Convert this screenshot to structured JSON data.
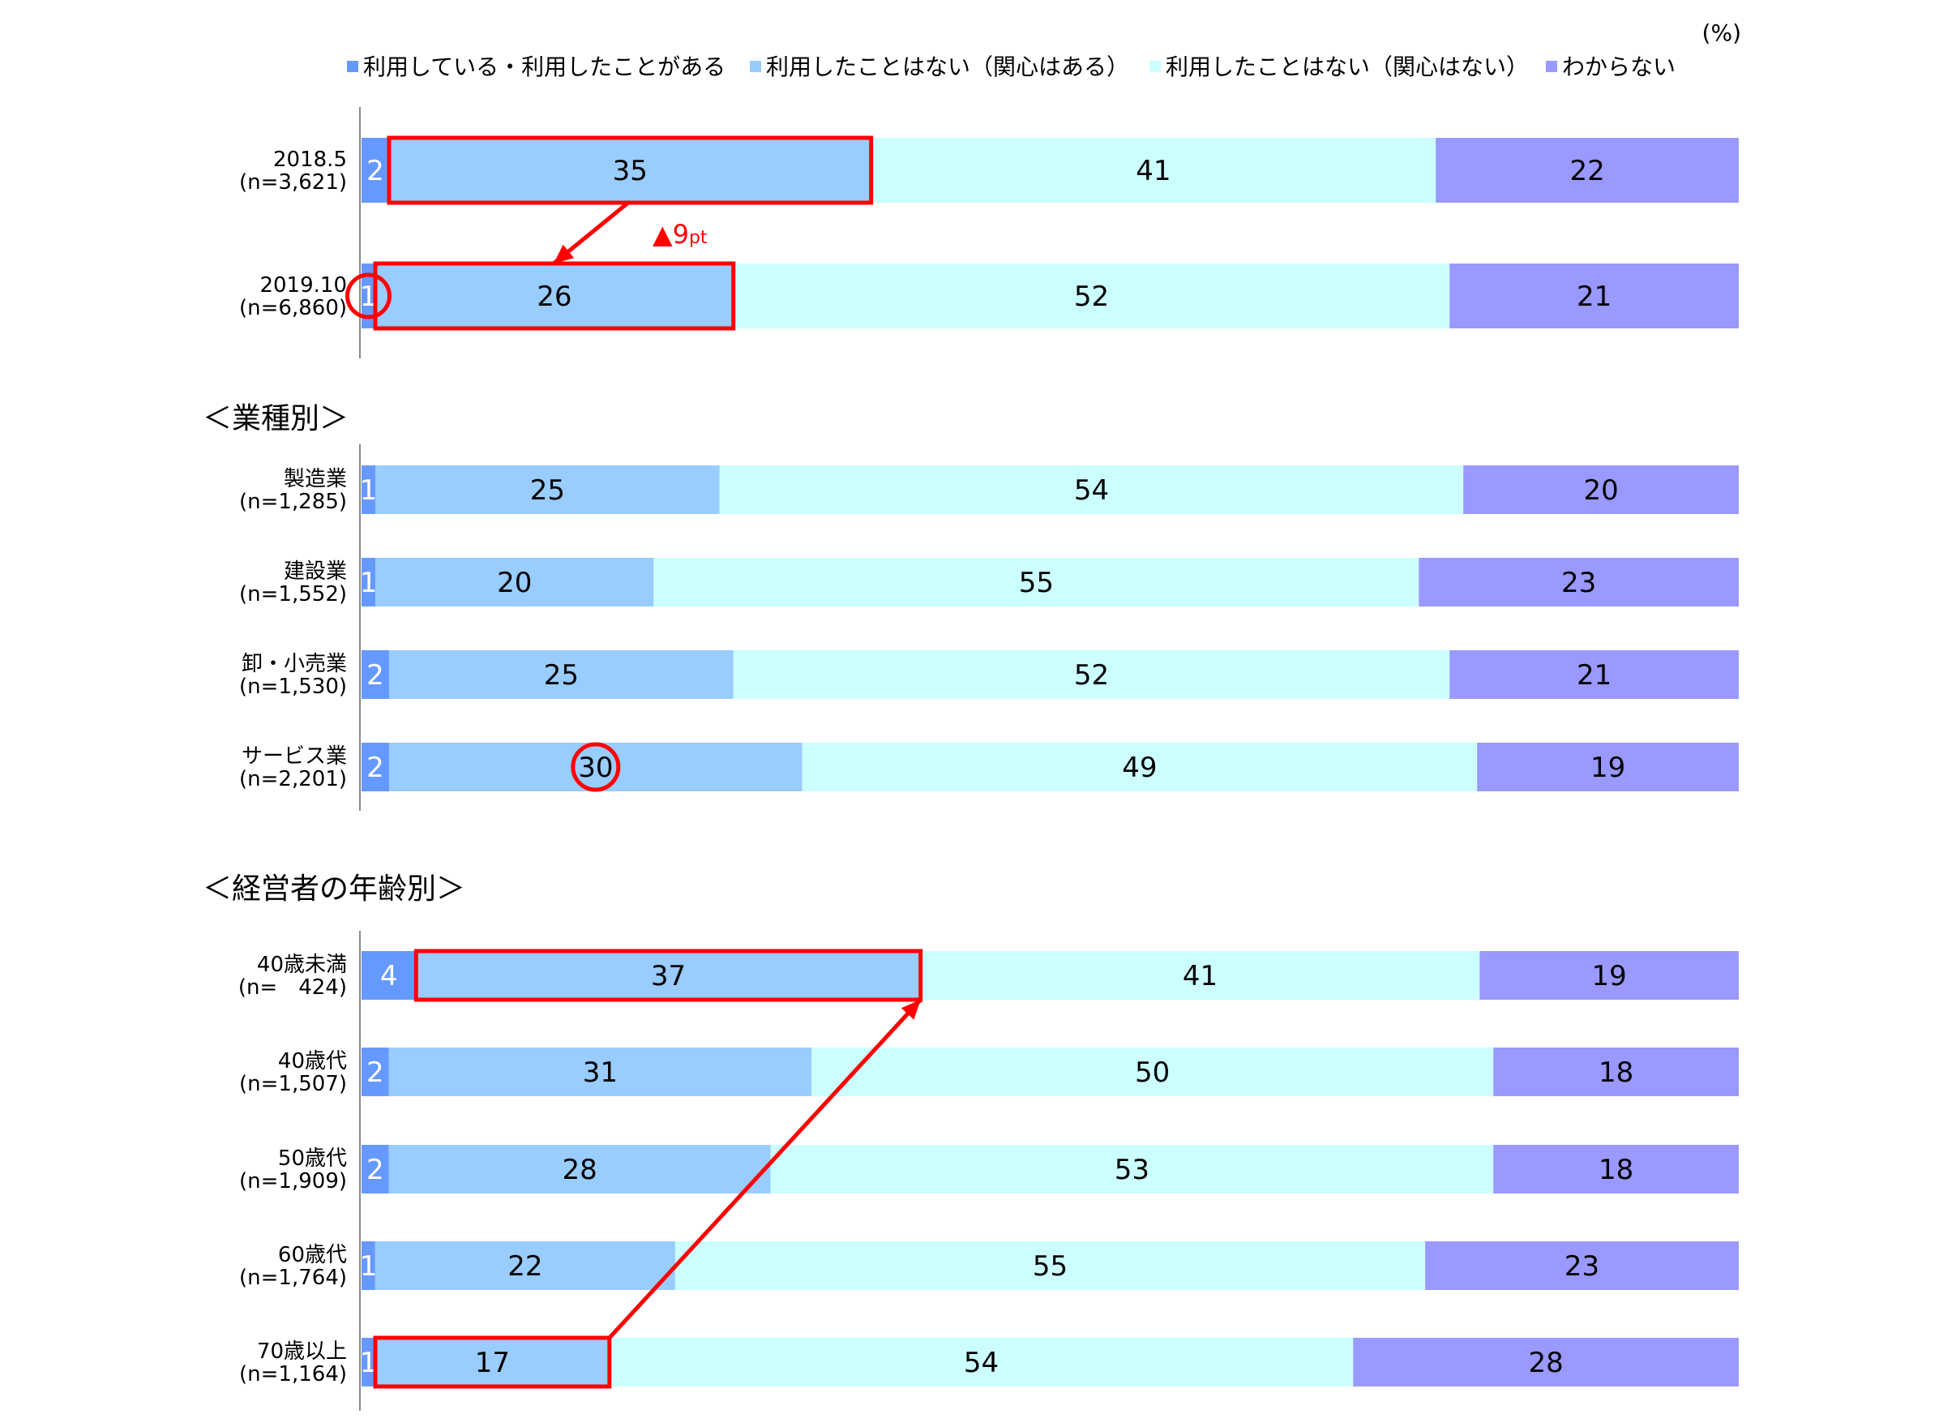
{
  "chart_data": {
    "type": "bar",
    "orientation": "horizontal-stacked-100",
    "unit_label": "(%)",
    "legend_position": "top",
    "grid": false,
    "series": [
      {
        "name": "利用している・利用したことがある",
        "color": "#6699ff"
      },
      {
        "name": "利用したことはない（関心はある）",
        "color": "#99ccff"
      },
      {
        "name": "利用したことはない（関心はない）",
        "color": "#ccffff"
      },
      {
        "name": "わからない",
        "color": "#9999ff"
      }
    ],
    "groups": [
      {
        "title": "",
        "rows": [
          {
            "line1": "2018.5",
            "line2": "(n=3,621)",
            "values": [
              2,
              35,
              41,
              22
            ]
          },
          {
            "line1": "2019.10",
            "line2": "(n=6,860)",
            "values": [
              1,
              26,
              52,
              21
            ]
          }
        ]
      },
      {
        "title": "＜業種別＞",
        "rows": [
          {
            "line1": "製造業",
            "line2": "(n=1,285)",
            "values": [
              1,
              25,
              54,
              20
            ]
          },
          {
            "line1": "建設業",
            "line2": "(n=1,552)",
            "values": [
              1,
              20,
              55,
              23
            ]
          },
          {
            "line1": "卸・小売業",
            "line2": "(n=1,530)",
            "values": [
              2,
              25,
              52,
              21
            ]
          },
          {
            "line1": "サービス業",
            "line2": "(n=2,201)",
            "values": [
              2,
              30,
              49,
              19
            ]
          }
        ]
      },
      {
        "title": "＜経営者の年齢別＞",
        "rows": [
          {
            "line1": "40歳未満",
            "line2": "(n=　424)",
            "values": [
              4,
              37,
              41,
              19
            ]
          },
          {
            "line1": "40歳代",
            "line2": "(n=1,507)",
            "values": [
              2,
              31,
              50,
              18
            ]
          },
          {
            "line1": "50歳代",
            "line2": "(n=1,909)",
            "values": [
              2,
              28,
              53,
              18
            ]
          },
          {
            "line1": "60歳代",
            "line2": "(n=1,764)",
            "values": [
              1,
              22,
              55,
              23
            ]
          },
          {
            "line1": "70歳以上",
            "line2": "(n=1,164)",
            "values": [
              1,
              17,
              54,
              28
            ]
          }
        ]
      }
    ],
    "annotations": {
      "change_label_marker": "▲",
      "change_label_value": "9",
      "change_label_unit": "pt",
      "highlight_color": "#ff0000"
    }
  }
}
